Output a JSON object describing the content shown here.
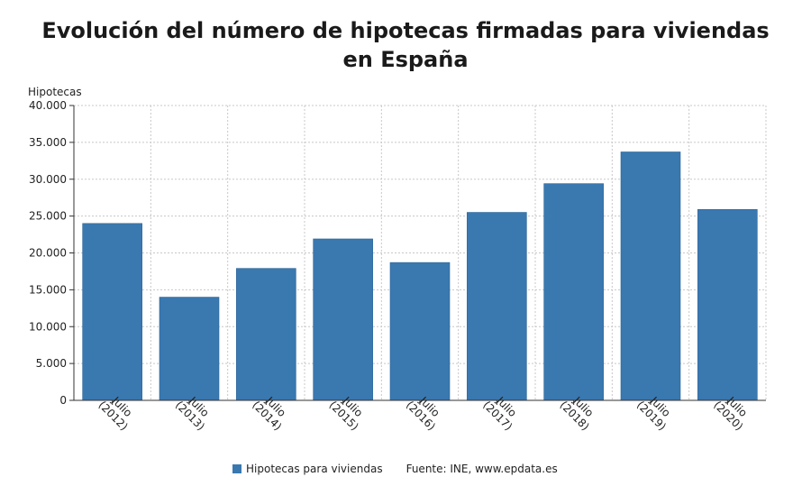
{
  "chart_data": {
    "type": "bar",
    "title": "Evolución del número de hipotecas firmadas para viviendas en España",
    "ylabel": "Hipotecas",
    "xlabel": "",
    "categories": [
      "Julio (2012)",
      "Julio (2013)",
      "Julio (2014)",
      "Julio (2015)",
      "Julio (2016)",
      "Julio (2017)",
      "Julio (2018)",
      "Julio (2019)",
      "Julio (2020)"
    ],
    "category_lines": [
      [
        "Julio",
        "(2012)"
      ],
      [
        "Julio",
        "(2013)"
      ],
      [
        "Julio",
        "(2014)"
      ],
      [
        "Julio",
        "(2015)"
      ],
      [
        "Julio",
        "(2016)"
      ],
      [
        "Julio",
        "(2017)"
      ],
      [
        "Julio",
        "(2018)"
      ],
      [
        "Julio",
        "(2019)"
      ],
      [
        "Julio",
        "(2020)"
      ]
    ],
    "series": [
      {
        "name": "Hipotecas para viviendas",
        "values": [
          24000,
          14000,
          17900,
          21900,
          18700,
          25500,
          29400,
          33700,
          25900
        ]
      }
    ],
    "ylim": [
      0,
      40000
    ],
    "yticks": [
      0,
      5000,
      10000,
      15000,
      20000,
      25000,
      30000,
      35000,
      40000
    ],
    "ytick_labels": [
      "0",
      "5.000",
      "10.000",
      "15.000",
      "20.000",
      "25.000",
      "30.000",
      "35.000",
      "40.000"
    ],
    "grid": true,
    "legend_position": "bottom",
    "source": "Fuente: INE, www.epdata.es",
    "colors": {
      "bar": "#3a78b0",
      "grid": "#c8c8c8",
      "axis": "#333333"
    }
  }
}
